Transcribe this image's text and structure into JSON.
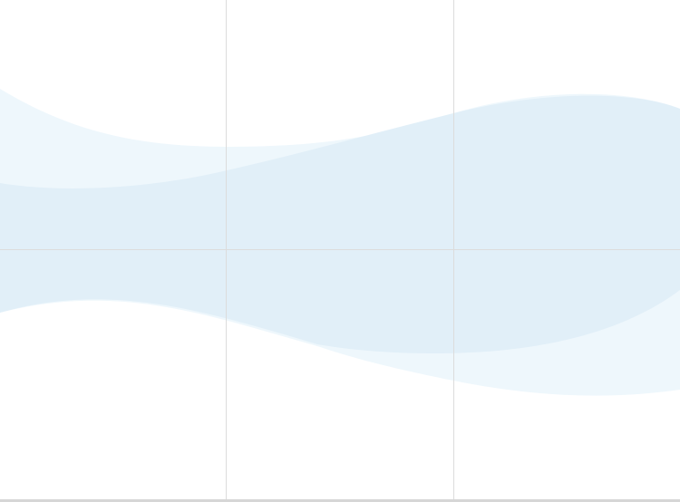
{
  "colors": {
    "background": "#ffffff",
    "band_back": "#eef7fc",
    "band_front": "#e1eff8",
    "grid": "#dcdcdc",
    "bottom_border": "#d6d6d6"
  },
  "grid": {
    "vertical_lines": 2,
    "horizontal_lines": 1
  }
}
